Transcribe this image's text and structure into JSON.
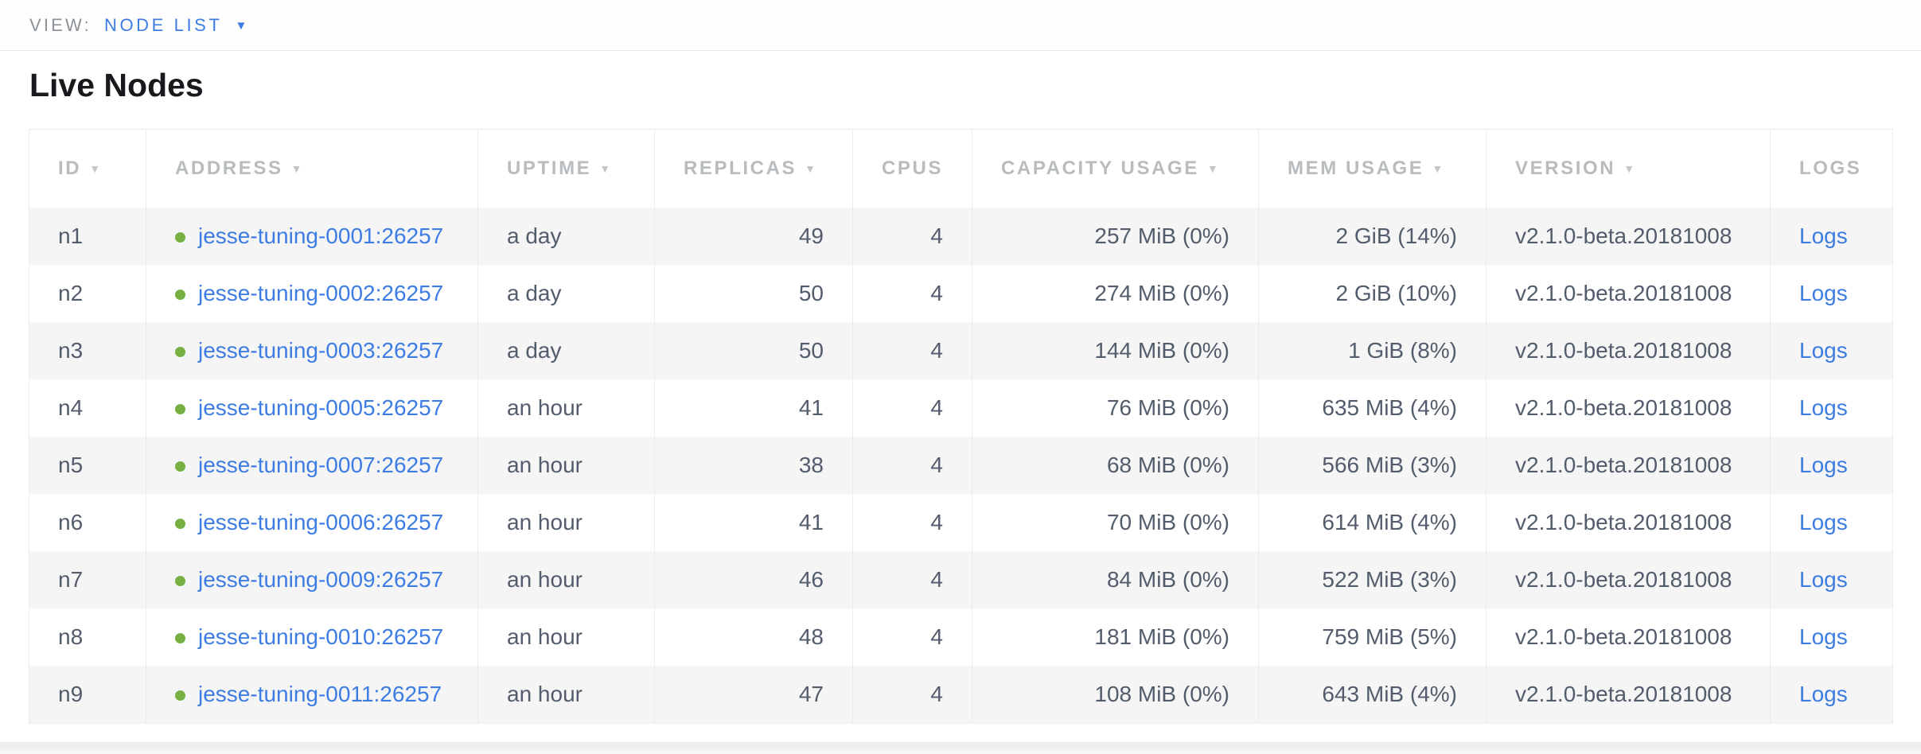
{
  "view_bar": {
    "label": "VIEW:",
    "selected": "NODE LIST"
  },
  "page": {
    "title": "Live Nodes"
  },
  "table": {
    "columns": [
      {
        "key": "id",
        "label": "ID",
        "sortable": true,
        "align": "left"
      },
      {
        "key": "address",
        "label": "ADDRESS",
        "sortable": true,
        "align": "left"
      },
      {
        "key": "uptime",
        "label": "UPTIME",
        "sortable": true,
        "align": "left"
      },
      {
        "key": "replicas",
        "label": "REPLICAS",
        "sortable": true,
        "align": "right"
      },
      {
        "key": "cpus",
        "label": "CPUS",
        "sortable": false,
        "align": "right"
      },
      {
        "key": "capacity",
        "label": "CAPACITY USAGE",
        "sortable": true,
        "align": "right"
      },
      {
        "key": "mem",
        "label": "MEM USAGE",
        "sortable": true,
        "align": "right"
      },
      {
        "key": "version",
        "label": "VERSION",
        "sortable": true,
        "align": "left"
      },
      {
        "key": "logs",
        "label": "LOGS",
        "sortable": false,
        "align": "left"
      }
    ],
    "rows": [
      {
        "id": "n1",
        "address": "jesse-tuning-0001:26257",
        "uptime": "a day",
        "replicas": "49",
        "cpus": "4",
        "capacity": "257 MiB (0%)",
        "mem": "2 GiB (14%)",
        "version": "v2.1.0-beta.20181008",
        "logs": "Logs"
      },
      {
        "id": "n2",
        "address": "jesse-tuning-0002:26257",
        "uptime": "a day",
        "replicas": "50",
        "cpus": "4",
        "capacity": "274 MiB (0%)",
        "mem": "2 GiB (10%)",
        "version": "v2.1.0-beta.20181008",
        "logs": "Logs"
      },
      {
        "id": "n3",
        "address": "jesse-tuning-0003:26257",
        "uptime": "a day",
        "replicas": "50",
        "cpus": "4",
        "capacity": "144 MiB (0%)",
        "mem": "1 GiB (8%)",
        "version": "v2.1.0-beta.20181008",
        "logs": "Logs"
      },
      {
        "id": "n4",
        "address": "jesse-tuning-0005:26257",
        "uptime": "an hour",
        "replicas": "41",
        "cpus": "4",
        "capacity": "76 MiB (0%)",
        "mem": "635 MiB (4%)",
        "version": "v2.1.0-beta.20181008",
        "logs": "Logs"
      },
      {
        "id": "n5",
        "address": "jesse-tuning-0007:26257",
        "uptime": "an hour",
        "replicas": "38",
        "cpus": "4",
        "capacity": "68 MiB (0%)",
        "mem": "566 MiB (3%)",
        "version": "v2.1.0-beta.20181008",
        "logs": "Logs"
      },
      {
        "id": "n6",
        "address": "jesse-tuning-0006:26257",
        "uptime": "an hour",
        "replicas": "41",
        "cpus": "4",
        "capacity": "70 MiB (0%)",
        "mem": "614 MiB (4%)",
        "version": "v2.1.0-beta.20181008",
        "logs": "Logs"
      },
      {
        "id": "n7",
        "address": "jesse-tuning-0009:26257",
        "uptime": "an hour",
        "replicas": "46",
        "cpus": "4",
        "capacity": "84 MiB (0%)",
        "mem": "522 MiB (3%)",
        "version": "v2.1.0-beta.20181008",
        "logs": "Logs"
      },
      {
        "id": "n8",
        "address": "jesse-tuning-0010:26257",
        "uptime": "an hour",
        "replicas": "48",
        "cpus": "4",
        "capacity": "181 MiB (0%)",
        "mem": "759 MiB (5%)",
        "version": "v2.1.0-beta.20181008",
        "logs": "Logs"
      },
      {
        "id": "n9",
        "address": "jesse-tuning-0011:26257",
        "uptime": "an hour",
        "replicas": "47",
        "cpus": "4",
        "capacity": "108 MiB (0%)",
        "mem": "643 MiB (4%)",
        "version": "v2.1.0-beta.20181008",
        "logs": "Logs"
      }
    ]
  },
  "icons": {
    "sort_arrow": "▼",
    "dropdown_caret": "▼",
    "status_dot": "live-node-green-dot"
  },
  "colors": {
    "accent_blue": "#3d7ce2",
    "status_green": "#76b043",
    "zebra_row_gray": "#f5f5f5",
    "header_text_gray": "#b8bcbe",
    "cell_text": "#535c6c",
    "table_border": "#ebecec"
  }
}
